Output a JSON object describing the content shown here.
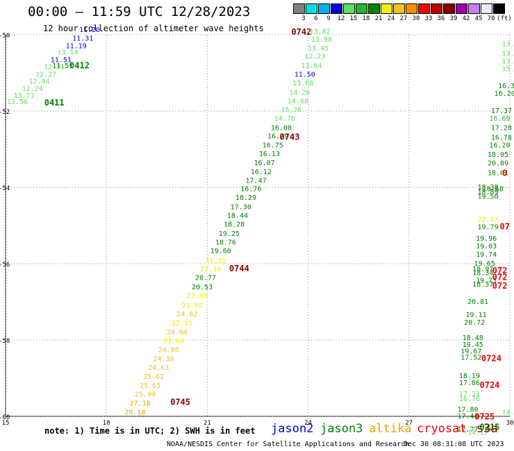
{
  "header": {
    "title": "00:00 — 11:59 UTC 12/28/2023",
    "subtitle": "12 hour collection of altimeter wave heights"
  },
  "color_scale": {
    "unit": "(ft)",
    "levels": [
      {
        "label": "3",
        "color": "#808080"
      },
      {
        "label": "6",
        "color": "#00e0e0"
      },
      {
        "label": "9",
        "color": "#00b0f0"
      },
      {
        "label": "12",
        "color": "#0000e0"
      },
      {
        "label": "15",
        "color": "#60e060"
      },
      {
        "label": "18",
        "color": "#30b030"
      },
      {
        "label": "21",
        "color": "#008000"
      },
      {
        "label": "24",
        "color": "#f0f000"
      },
      {
        "label": "27",
        "color": "#f0c020"
      },
      {
        "label": "30",
        "color": "#f09000"
      },
      {
        "label": "33",
        "color": "#f00000"
      },
      {
        "label": "36",
        "color": "#c00000"
      },
      {
        "label": "39",
        "color": "#800000"
      },
      {
        "label": "42",
        "color": "#a000a0"
      },
      {
        "label": "45",
        "color": "#c080f0"
      },
      {
        "label": "70",
        "color": "#e8e8ff"
      },
      {
        "label": "",
        "color": "#000000"
      }
    ]
  },
  "chart_data": {
    "type": "scatter",
    "title": "00:00 — 11:59 UTC 12/28/2023",
    "subtitle": "12 hour collection of altimeter wave heights",
    "xlim": [
      15,
      30
    ],
    "ylim": [
      -60,
      -50
    ],
    "x_ticks": [
      "15",
      "18",
      "21",
      "24",
      "27",
      "30"
    ],
    "y_ticks": [
      "-50",
      "-52",
      "-54",
      "-56",
      "-58",
      "-60"
    ],
    "grid": true,
    "colors": {
      "jason2": "#0000cc",
      "jason3": "#008000",
      "altika": "#f0a000",
      "cryosat": "#ee0000",
      "s3a": "#880000"
    },
    "points": [
      {
        "x": 17.5,
        "y": -49.93,
        "v": "11.20",
        "c": "#0000e0"
      },
      {
        "x": 17.3,
        "y": -50.15,
        "v": "11.31",
        "c": "#0000e0"
      },
      {
        "x": 17.1,
        "y": -50.35,
        "v": "11.19",
        "c": "#0000e0"
      },
      {
        "x": 16.85,
        "y": -50.52,
        "v": "13.14",
        "c": "#60e060"
      },
      {
        "x": 16.65,
        "y": -50.72,
        "v": "11.51",
        "c": "#0000e0"
      },
      {
        "x": 16.45,
        "y": -50.9,
        "v": "12.21",
        "c": "#60e060"
      },
      {
        "x": 16.2,
        "y": -51.1,
        "v": "12.27",
        "c": "#60e060"
      },
      {
        "x": 16.0,
        "y": -51.28,
        "v": "12.44",
        "c": "#60e060"
      },
      {
        "x": 15.8,
        "y": -51.47,
        "v": "12.24",
        "c": "#60e060"
      },
      {
        "x": 15.55,
        "y": -51.65,
        "v": "13.71",
        "c": "#60e060"
      },
      {
        "x": 15.35,
        "y": -51.82,
        "v": "13.56",
        "c": "#60e060"
      },
      {
        "x": 16.7,
        "y": -50.87,
        "v": "11.51",
        "c": "#008000"
      },
      {
        "x": 24.35,
        "y": -49.97,
        "v": "13.82",
        "c": "#60e060"
      },
      {
        "x": 24.4,
        "y": -50.18,
        "v": "13.98",
        "c": "#60e060"
      },
      {
        "x": 24.3,
        "y": -50.42,
        "v": "13.45",
        "c": "#60e060"
      },
      {
        "x": 24.2,
        "y": -50.63,
        "v": "12.23",
        "c": "#60e060"
      },
      {
        "x": 24.1,
        "y": -50.87,
        "v": "13.64",
        "c": "#60e060"
      },
      {
        "x": 23.9,
        "y": -51.1,
        "v": "11.50",
        "c": "#0000e0"
      },
      {
        "x": 23.85,
        "y": -51.33,
        "v": "13.68",
        "c": "#60e060"
      },
      {
        "x": 23.75,
        "y": -51.57,
        "v": "14.26",
        "c": "#60e060"
      },
      {
        "x": 23.7,
        "y": -51.8,
        "v": "14.68",
        "c": "#60e060"
      },
      {
        "x": 23.5,
        "y": -52.03,
        "v": "15.26",
        "c": "#60e060"
      },
      {
        "x": 23.3,
        "y": -52.25,
        "v": "14.70",
        "c": "#60e060"
      },
      {
        "x": 23.2,
        "y": -52.5,
        "v": "16.00",
        "c": "#008000"
      },
      {
        "x": 23.1,
        "y": -52.72,
        "v": "16.79",
        "c": "#008000"
      },
      {
        "x": 22.95,
        "y": -52.95,
        "v": "16.75",
        "c": "#008000"
      },
      {
        "x": 22.85,
        "y": -53.18,
        "v": "16.13",
        "c": "#008000"
      },
      {
        "x": 22.7,
        "y": -53.42,
        "v": "16.07",
        "c": "#008000"
      },
      {
        "x": 22.6,
        "y": -53.65,
        "v": "16.12",
        "c": "#008000"
      },
      {
        "x": 22.45,
        "y": -53.88,
        "v": "17.47",
        "c": "#008000"
      },
      {
        "x": 22.3,
        "y": -54.1,
        "v": "16.76",
        "c": "#008000"
      },
      {
        "x": 22.15,
        "y": -54.33,
        "v": "18.29",
        "c": "#008000"
      },
      {
        "x": 22.0,
        "y": -54.57,
        "v": "17.30",
        "c": "#008000"
      },
      {
        "x": 21.9,
        "y": -54.8,
        "v": "18.44",
        "c": "#008000"
      },
      {
        "x": 21.8,
        "y": -55.03,
        "v": "18.28",
        "c": "#008000"
      },
      {
        "x": 21.65,
        "y": -55.27,
        "v": "19.25",
        "c": "#008000"
      },
      {
        "x": 21.55,
        "y": -55.5,
        "v": "18.76",
        "c": "#008000"
      },
      {
        "x": 21.4,
        "y": -55.73,
        "v": "19.60",
        "c": "#008000"
      },
      {
        "x": 21.25,
        "y": -55.98,
        "v": "21.35",
        "c": "#f0f000"
      },
      {
        "x": 21.1,
        "y": -56.2,
        "v": "22.19",
        "c": "#f0f000"
      },
      {
        "x": 20.95,
        "y": -56.43,
        "v": "20.77",
        "c": "#008000"
      },
      {
        "x": 20.85,
        "y": -56.67,
        "v": "20.53",
        "c": "#008000"
      },
      {
        "x": 20.7,
        "y": -56.9,
        "v": "22.83",
        "c": "#f0f000"
      },
      {
        "x": 20.55,
        "y": -57.15,
        "v": "21.88",
        "c": "#f0f000"
      },
      {
        "x": 20.4,
        "y": -57.38,
        "v": "24.62",
        "c": "#f0c020"
      },
      {
        "x": 20.25,
        "y": -57.62,
        "v": "22.95",
        "c": "#f0f000"
      },
      {
        "x": 20.1,
        "y": -57.85,
        "v": "24.04",
        "c": "#f0c020"
      },
      {
        "x": 20.0,
        "y": -58.08,
        "v": "23.66",
        "c": "#f0f000"
      },
      {
        "x": 19.85,
        "y": -58.32,
        "v": "24.08",
        "c": "#f0c020"
      },
      {
        "x": 19.7,
        "y": -58.55,
        "v": "24.30",
        "c": "#f0c020"
      },
      {
        "x": 19.55,
        "y": -58.78,
        "v": "24.63",
        "c": "#f0c020"
      },
      {
        "x": 19.4,
        "y": -59.02,
        "v": "25.62",
        "c": "#f0c020"
      },
      {
        "x": 19.3,
        "y": -59.25,
        "v": "25.65",
        "c": "#f0c020"
      },
      {
        "x": 19.15,
        "y": -59.48,
        "v": "25.99",
        "c": "#f0c020"
      },
      {
        "x": 19.0,
        "y": -59.72,
        "v": "27.18",
        "c": "#f0a000"
      },
      {
        "x": 18.85,
        "y": -59.95,
        "v": "26.18",
        "c": "#f0a000"
      },
      {
        "x": 29.95,
        "y": -50.3,
        "v": "13.",
        "c": "#60e060"
      },
      {
        "x": 29.95,
        "y": -50.55,
        "v": "13.",
        "c": "#60e060"
      },
      {
        "x": 29.95,
        "y": -50.75,
        "v": "13.",
        "c": "#60e060"
      },
      {
        "x": 29.95,
        "y": -50.95,
        "v": "15.",
        "c": "#60e060"
      },
      {
        "x": 29.9,
        "y": -51.4,
        "v": "16.3",
        "c": "#008000"
      },
      {
        "x": 29.85,
        "y": -51.6,
        "v": "16.20",
        "c": "#008000"
      },
      {
        "x": 29.75,
        "y": -52.05,
        "v": "17.37",
        "c": "#008000"
      },
      {
        "x": 29.7,
        "y": -52.25,
        "v": "16.69",
        "c": "#30b030"
      },
      {
        "x": 29.75,
        "y": -52.5,
        "v": "17.28",
        "c": "#008000"
      },
      {
        "x": 29.75,
        "y": -52.75,
        "v": "16.78",
        "c": "#008000"
      },
      {
        "x": 29.7,
        "y": -52.95,
        "v": "16.20",
        "c": "#008000"
      },
      {
        "x": 29.65,
        "y": -53.2,
        "v": "18.05",
        "c": "#008000"
      },
      {
        "x": 29.65,
        "y": -53.43,
        "v": "20.09",
        "c": "#008000"
      },
      {
        "x": 29.65,
        "y": -53.68,
        "v": "18.01",
        "c": "#008000"
      },
      {
        "x": 29.35,
        "y": -54.05,
        "v": "18.38",
        "c": "#008000"
      },
      {
        "x": 29.35,
        "y": -54.18,
        "v": "18.89",
        "c": "#008000"
      },
      {
        "x": 29.35,
        "y": -54.3,
        "v": "19.50",
        "c": "#008000"
      },
      {
        "x": 29.5,
        "y": -54.1,
        "v": "18.58",
        "c": "#008000"
      },
      {
        "x": 29.35,
        "y": -54.9,
        "v": "22.13",
        "c": "#f0f000"
      },
      {
        "x": 29.35,
        "y": -55.1,
        "v": "19.79",
        "c": "#008000"
      },
      {
        "x": 29.3,
        "y": -55.4,
        "v": "19.96",
        "c": "#008000"
      },
      {
        "x": 29.3,
        "y": -55.6,
        "v": "19.03",
        "c": "#008000"
      },
      {
        "x": 29.3,
        "y": -55.82,
        "v": "19.74",
        "c": "#008000"
      },
      {
        "x": 29.25,
        "y": -56.05,
        "v": "19.65",
        "c": "#008000"
      },
      {
        "x": 29.2,
        "y": -56.2,
        "v": "18.97",
        "c": "#008000"
      },
      {
        "x": 29.2,
        "y": -56.3,
        "v": "18.34",
        "c": "#008000"
      },
      {
        "x": 29.3,
        "y": -56.5,
        "v": "19.73",
        "c": "#008000"
      },
      {
        "x": 29.2,
        "y": -56.6,
        "v": "18.37",
        "c": "#008000"
      },
      {
        "x": 29.05,
        "y": -57.05,
        "v": "20.81",
        "c": "#008000"
      },
      {
        "x": 29.0,
        "y": -57.4,
        "v": "19.11",
        "c": "#008000"
      },
      {
        "x": 28.95,
        "y": -57.6,
        "v": "20.72",
        "c": "#008000"
      },
      {
        "x": 28.9,
        "y": -58.0,
        "v": "18.48",
        "c": "#008000"
      },
      {
        "x": 28.9,
        "y": -58.18,
        "v": "19.45",
        "c": "#008000"
      },
      {
        "x": 28.85,
        "y": -58.35,
        "v": "19.67",
        "c": "#008000"
      },
      {
        "x": 28.85,
        "y": -58.52,
        "v": "17.52",
        "c": "#008000"
      },
      {
        "x": 28.8,
        "y": -59.0,
        "v": "18.19",
        "c": "#008000"
      },
      {
        "x": 28.8,
        "y": -59.18,
        "v": "17.86",
        "c": "#008000"
      },
      {
        "x": 28.8,
        "y": -59.47,
        "v": "17.11",
        "c": "#60e060"
      },
      {
        "x": 28.8,
        "y": -59.6,
        "v": "16.76",
        "c": "#60e060"
      },
      {
        "x": 28.75,
        "y": -59.88,
        "v": "17.80",
        "c": "#008000"
      },
      {
        "x": 28.75,
        "y": -60.05,
        "v": "17.43",
        "c": "#008000"
      },
      {
        "x": 28.75,
        "y": -60.4,
        "v": "17.77",
        "c": "#008000"
      },
      {
        "x": 29.05,
        "y": -60.48,
        "v": "14.17",
        "c": "#60e060"
      },
      {
        "x": 29.4,
        "y": -60.4,
        "v": "14.",
        "c": "#60e060"
      },
      {
        "x": 29.95,
        "y": -59.95,
        "v": "14.",
        "c": "#60e060"
      }
    ],
    "annotations": [
      {
        "x": 23.8,
        "y": -50.0,
        "text": "0742",
        "c": "#880000"
      },
      {
        "x": 17.2,
        "y": -50.88,
        "text": "0412",
        "c": "#008000"
      },
      {
        "x": 16.45,
        "y": -51.85,
        "text": "0411",
        "c": "#008000"
      },
      {
        "x": 23.45,
        "y": -52.75,
        "text": "0743",
        "c": "#880000"
      },
      {
        "x": 21.95,
        "y": -56.2,
        "text": "0744",
        "c": "#880000"
      },
      {
        "x": 20.2,
        "y": -59.7,
        "text": "0745",
        "c": "#880000"
      },
      {
        "x": 29.85,
        "y": -53.7,
        "text": "0",
        "c": "#ee0000"
      },
      {
        "x": 29.85,
        "y": -55.1,
        "text": "07",
        "c": "#ee0000"
      },
      {
        "x": 29.7,
        "y": -56.25,
        "text": "072",
        "c": "#ee0000"
      },
      {
        "x": 29.7,
        "y": -56.43,
        "text": "072",
        "c": "#ee0000"
      },
      {
        "x": 29.7,
        "y": -56.65,
        "text": "072",
        "c": "#ee0000"
      },
      {
        "x": 29.45,
        "y": -58.55,
        "text": "0724",
        "c": "#ee0000"
      },
      {
        "x": 29.4,
        "y": -59.25,
        "text": "0724",
        "c": "#ee0000"
      },
      {
        "x": 29.25,
        "y": -60.08,
        "text": "0725",
        "c": "#ee0000"
      },
      {
        "x": 29.4,
        "y": -60.35,
        "text": "0215",
        "c": "#008000"
      }
    ]
  },
  "footer": {
    "note": "note: 1) Time is in UTC; 2) SWH is in feet",
    "satellites": [
      {
        "name": "jason2",
        "color": "#0000cc"
      },
      {
        "name": "jason3",
        "color": "#008000"
      },
      {
        "name": "altika",
        "color": "#f0a000"
      },
      {
        "name": "cryosat",
        "color": "#ee0000"
      },
      {
        "name": "s3a",
        "color": "#880000"
      }
    ],
    "credit": "NOAA/NESDIS Center for Satellite Applications and Research",
    "timestamp": "Dec 30 08:31:08 UTC 2023"
  }
}
